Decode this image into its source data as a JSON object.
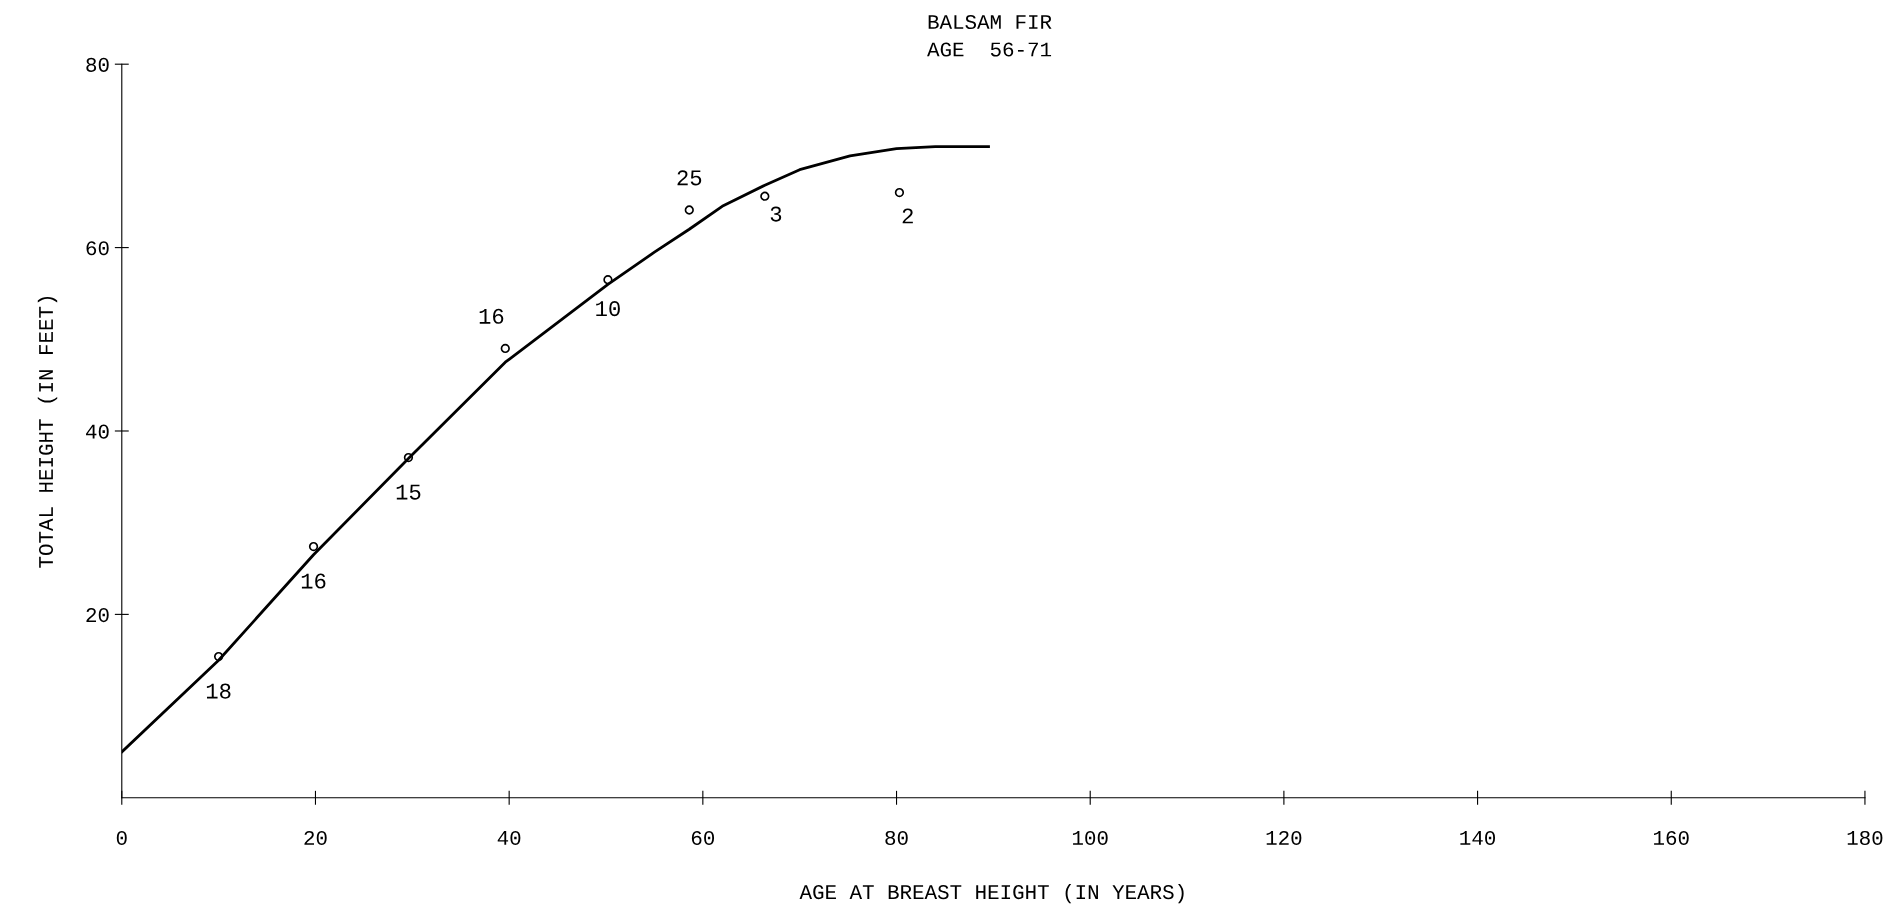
{
  "chart_data": {
    "type": "scatter",
    "title": "BALSAM FIR",
    "subtitle": "AGE  56-71",
    "xlabel": "AGE AT BREAST HEIGHT (IN YEARS)",
    "ylabel": "TOTAL HEIGHT (IN FEET)",
    "xlim": [
      0,
      180
    ],
    "ylim": [
      0,
      80
    ],
    "xticks": [
      0,
      20,
      40,
      60,
      80,
      100,
      120,
      140,
      160,
      180
    ],
    "yticks": [
      20,
      40,
      60,
      80
    ],
    "grid": false,
    "series": [
      {
        "marker": "circle",
        "color": "#000000",
        "x": [
          10,
          19.8,
          29.6,
          39.6,
          50.2,
          58.6,
          66.4,
          80.3
        ],
        "values": [
          15.4,
          27.4,
          37.1,
          49,
          56.5,
          64.1,
          65.6,
          66
        ]
      },
      {
        "type": "line",
        "color": "#000000",
        "line_style": "solid",
        "x": [
          0,
          10,
          19.8,
          29.6,
          39.6,
          50.2,
          55,
          58.6,
          62,
          66.4,
          70,
          75.2,
          80,
          84,
          89.5
        ],
        "values": [
          5,
          15,
          26.5,
          37,
          47.5,
          56,
          59.5,
          62,
          64.5,
          66.8,
          68.5,
          70,
          70.8,
          71,
          71
        ]
      }
    ],
    "annotations": [
      {
        "text": "18",
        "x": 10,
        "y": 15.4
      },
      {
        "text": "16",
        "x": 19.8,
        "y": 27.4
      },
      {
        "text": "15",
        "x": 29.6,
        "y": 37.1
      },
      {
        "text": "16",
        "x": 39.6,
        "y": 49
      },
      {
        "text": "10",
        "x": 50.2,
        "y": 56.5
      },
      {
        "text": "25",
        "x": 58.6,
        "y": 64.1
      },
      {
        "text": "3",
        "x": 66.4,
        "y": 65.6
      },
      {
        "text": "2",
        "x": 80.3,
        "y": 66
      }
    ]
  }
}
